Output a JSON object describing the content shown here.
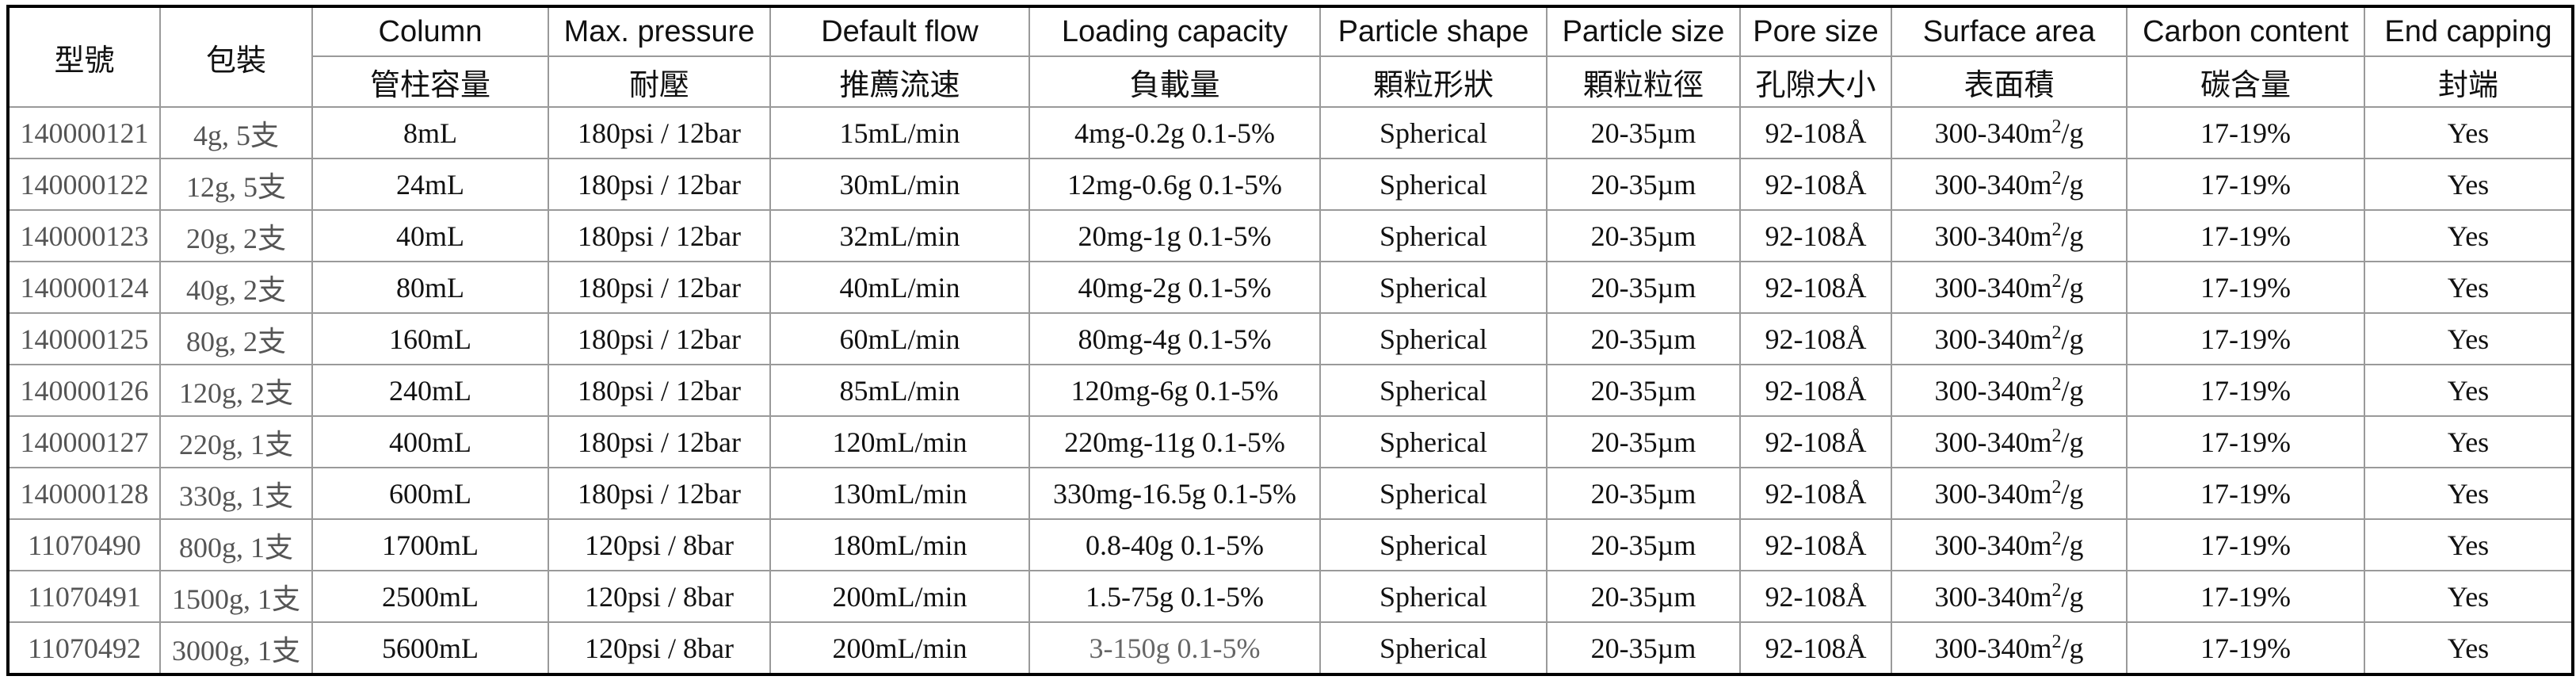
{
  "table": {
    "header_rowspan": {
      "model": "型號",
      "package": "包裝"
    },
    "columns": [
      {
        "key": "column",
        "en": "Column",
        "zh": "管柱容量"
      },
      {
        "key": "pressure",
        "en": "Max. pressure",
        "zh": "耐壓"
      },
      {
        "key": "flow",
        "en": "Default flow",
        "zh": "推薦流速"
      },
      {
        "key": "loading",
        "en": "Loading capacity",
        "zh": "負載量"
      },
      {
        "key": "shape",
        "en": "Particle shape",
        "zh": "顆粒形狀"
      },
      {
        "key": "particle_size",
        "en": "Particle size",
        "zh": "顆粒粒徑"
      },
      {
        "key": "pore_size",
        "en": "Pore size",
        "zh": "孔隙大小"
      },
      {
        "key": "surface_area",
        "en": "Surface area",
        "zh": "表面積"
      },
      {
        "key": "carbon",
        "en": "Carbon content",
        "zh": "碳含量"
      },
      {
        "key": "capping",
        "en": "End capping",
        "zh": "封端"
      }
    ],
    "rows": [
      {
        "model": "140000121",
        "package": "4g, 5支",
        "column": "8mL",
        "pressure": "180psi / 12bar",
        "flow": "15mL/min",
        "loading": "4mg-0.2g 0.1-5%",
        "shape": "Spherical",
        "particle_size": "20-35µm",
        "pore_size": "92-108Å",
        "surface_area": "300-340m",
        "surface_sup": "2",
        "surface_unit": "/g",
        "carbon": "17-19%",
        "capping": "Yes"
      },
      {
        "model": "140000122",
        "package": "12g, 5支",
        "column": "24mL",
        "pressure": "180psi / 12bar",
        "flow": "30mL/min",
        "loading": "12mg-0.6g 0.1-5%",
        "shape": "Spherical",
        "particle_size": "20-35µm",
        "pore_size": "92-108Å",
        "surface_area": "300-340m",
        "surface_sup": "2",
        "surface_unit": "/g",
        "carbon": "17-19%",
        "capping": "Yes"
      },
      {
        "model": "140000123",
        "package": "20g, 2支",
        "column": "40mL",
        "pressure": "180psi / 12bar",
        "flow": "32mL/min",
        "loading": "20mg-1g 0.1-5%",
        "shape": "Spherical",
        "particle_size": "20-35µm",
        "pore_size": "92-108Å",
        "surface_area": "300-340m",
        "surface_sup": "2",
        "surface_unit": "/g",
        "carbon": "17-19%",
        "capping": "Yes"
      },
      {
        "model": "140000124",
        "package": "40g, 2支",
        "column": "80mL",
        "pressure": "180psi / 12bar",
        "flow": "40mL/min",
        "loading": "40mg-2g 0.1-5%",
        "shape": "Spherical",
        "particle_size": "20-35µm",
        "pore_size": "92-108Å",
        "surface_area": "300-340m",
        "surface_sup": "2",
        "surface_unit": "/g",
        "carbon": "17-19%",
        "capping": "Yes"
      },
      {
        "model": "140000125",
        "package": "80g, 2支",
        "column": "160mL",
        "pressure": "180psi / 12bar",
        "flow": "60mL/min",
        "loading": "80mg-4g 0.1-5%",
        "shape": "Spherical",
        "particle_size": "20-35µm",
        "pore_size": "92-108Å",
        "surface_area": "300-340m",
        "surface_sup": "2",
        "surface_unit": "/g",
        "carbon": "17-19%",
        "capping": "Yes"
      },
      {
        "model": "140000126",
        "package": "120g, 2支",
        "column": "240mL",
        "pressure": "180psi / 12bar",
        "flow": "85mL/min",
        "loading": "120mg-6g 0.1-5%",
        "shape": "Spherical",
        "particle_size": "20-35µm",
        "pore_size": "92-108Å",
        "surface_area": "300-340m",
        "surface_sup": "2",
        "surface_unit": "/g",
        "carbon": "17-19%",
        "capping": "Yes"
      },
      {
        "model": "140000127",
        "package": "220g, 1支",
        "column": "400mL",
        "pressure": "180psi / 12bar",
        "flow": "120mL/min",
        "loading": "220mg-11g 0.1-5%",
        "shape": "Spherical",
        "particle_size": "20-35µm",
        "pore_size": "92-108Å",
        "surface_area": "300-340m",
        "surface_sup": "2",
        "surface_unit": "/g",
        "carbon": "17-19%",
        "capping": "Yes"
      },
      {
        "model": "140000128",
        "package": "330g, 1支",
        "column": "600mL",
        "pressure": "180psi / 12bar",
        "flow": "130mL/min",
        "loading": "330mg-16.5g 0.1-5%",
        "shape": "Spherical",
        "particle_size": "20-35µm",
        "pore_size": "92-108Å",
        "surface_area": "300-340m",
        "surface_sup": "2",
        "surface_unit": "/g",
        "carbon": "17-19%",
        "capping": "Yes"
      },
      {
        "model": "11070490",
        "package": "800g, 1支",
        "column": "1700mL",
        "pressure": "120psi / 8bar",
        "flow": "180mL/min",
        "loading": "0.8-40g 0.1-5%",
        "shape": "Spherical",
        "particle_size": "20-35µm",
        "pore_size": "92-108Å",
        "surface_area": "300-340m",
        "surface_sup": "2",
        "surface_unit": "/g",
        "carbon": "17-19%",
        "capping": "Yes"
      },
      {
        "model": "11070491",
        "package": "1500g, 1支",
        "column": "2500mL",
        "pressure": "120psi / 8bar",
        "flow": "200mL/min",
        "loading": "1.5-75g 0.1-5%",
        "shape": "Spherical",
        "particle_size": "20-35µm",
        "pore_size": "92-108Å",
        "surface_area": "300-340m",
        "surface_sup": "2",
        "surface_unit": "/g",
        "carbon": "17-19%",
        "capping": "Yes"
      },
      {
        "model": "11070492",
        "package": "3000g, 1支",
        "column": "5600mL",
        "pressure": "120psi / 8bar",
        "flow": "200mL/min",
        "loading": "3-150g 0.1-5%",
        "loading_muted": true,
        "shape": "Spherical",
        "particle_size": "20-35µm",
        "pore_size": "92-108Å",
        "surface_area": "300-340m",
        "surface_sup": "2",
        "surface_unit": "/g",
        "carbon": "17-19%",
        "capping": "Yes"
      }
    ]
  }
}
